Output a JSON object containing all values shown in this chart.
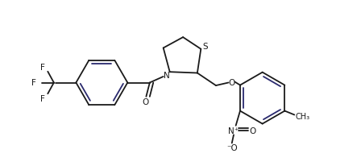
{
  "bg_color": "#ffffff",
  "line_color": "#1a1a1a",
  "line_color2": "#2a2a6e",
  "figsize": [
    4.48,
    2.07
  ],
  "dpi": 100,
  "xlim": [
    0,
    10
  ],
  "ylim": [
    0,
    4.6
  ]
}
